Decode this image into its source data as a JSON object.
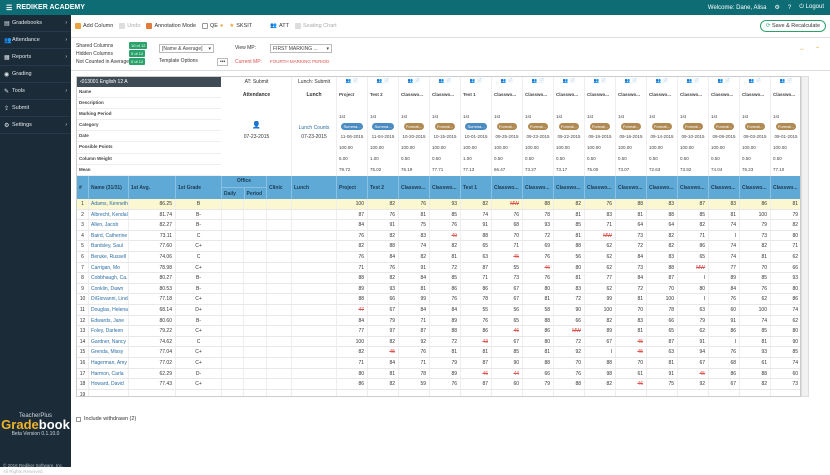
{
  "topbar": {
    "brand": "REDIKER ACADEMY",
    "welcome": "Welcome: Dane, Alisa",
    "logout": "Logout"
  },
  "sidebar": [
    {
      "icon": "book-icon",
      "label": "Gradebooks"
    },
    {
      "icon": "people-icon",
      "label": "Attendance"
    },
    {
      "icon": "report-icon",
      "label": "Reports"
    },
    {
      "icon": "grading-icon",
      "label": "Grading"
    },
    {
      "icon": "tools-icon",
      "label": "Tools"
    },
    {
      "icon": "submit-icon",
      "label": "Submit"
    },
    {
      "icon": "gear-icon",
      "label": "Settings"
    }
  ],
  "logo": {
    "teacherplus": "TeacherPlus",
    "grade": "Grade",
    "book": "book",
    "version": "Beta Version 0.1.10.0",
    "copyright": "© 2016 Rediker Software, Inc.",
    "rights": "All Rights Reserved."
  },
  "toolbar": {
    "add_column": "Add Column",
    "undo": "Undo",
    "annotation": "Annotation Mode",
    "qe": "QE",
    "sksit": "SKSIT",
    "att": "ATT",
    "seating": "Seating Chart",
    "save": "Save & Recalculate"
  },
  "options": {
    "shared": "Shared Columns",
    "hidden": "Hidden Columns",
    "not_counted": "Not Counted in Average",
    "shared_tag": "10 of 12",
    "hidden_tag": "0 of 12",
    "notcounted_tag": "0 of 12",
    "name_average": "[Name & Average]",
    "template": "Template Options",
    "view_mp": "View MP:",
    "mp_value": "FIRST MARKING ...",
    "current_mp": "Current MP:",
    "current_mp_value": "FOURTH MARKING PERIOD"
  },
  "grid_info": {
    "course": "013001 English 12 A",
    "labels": [
      "Name",
      "Description",
      "Marking Period",
      "Category",
      "Date",
      "Possible Points",
      "Column Weight",
      "Mean"
    ]
  },
  "special_cols": {
    "attendance": {
      "tag": "AT: Submit",
      "title": "Attendance",
      "date": "07-23-2015"
    },
    "lunch": {
      "tag": "Lunch: Submit",
      "title": "Lunch",
      "link": "Lunch Counts",
      "date": "07-23-2015"
    }
  },
  "assign_cols": [
    {
      "name": "Project",
      "mp": "1st",
      "cat": "Summa...",
      "date": "11-06-2015",
      "pts": "100.00",
      "wt": "5.00",
      "mean": "79.72",
      "catColor": "#4a8bc2"
    },
    {
      "name": "Test 2",
      "mp": "1st",
      "cat": "Summa...",
      "date": "11-04-2015",
      "pts": "100.00",
      "wt": "1.00",
      "mean": "75.02",
      "catColor": "#4a8bc2"
    },
    {
      "name": "Classwo...",
      "mp": "1st",
      "cat": "Format...",
      "date": "10-20-2015",
      "pts": "100.00",
      "wt": "0.50",
      "mean": "76.19",
      "catColor": "#b08a52"
    },
    {
      "name": "Classwo...",
      "mp": "1st",
      "cat": "Format...",
      "date": "10-15-2015",
      "pts": "100.00",
      "wt": "0.50",
      "mean": "77.71",
      "catColor": "#b08a52"
    },
    {
      "name": "Test 1",
      "mp": "1st",
      "cat": "Summa...",
      "date": "10-01-2015",
      "pts": "100.00",
      "wt": "1.00",
      "mean": "77.13",
      "catColor": "#4a8bc2"
    },
    {
      "name": "Classwo...",
      "mp": "1st",
      "cat": "Format...",
      "date": "09-25-2015",
      "pts": "100.00",
      "wt": "0.50",
      "mean": "66.47",
      "catColor": "#b08a52"
    },
    {
      "name": "Classwo...",
      "mp": "1st",
      "cat": "Format...",
      "date": "09-23-2015",
      "pts": "100.00",
      "wt": "0.50",
      "mean": "73.27",
      "catColor": "#b08a52"
    },
    {
      "name": "Classwo...",
      "mp": "1st",
      "cat": "Format...",
      "date": "09-22-2015",
      "pts": "100.00",
      "wt": "0.50",
      "mean": "73.17",
      "catColor": "#b08a52"
    },
    {
      "name": "Classwo...",
      "mp": "1st",
      "cat": "Format...",
      "date": "09-19-2015",
      "pts": "100.00",
      "wt": "0.50",
      "mean": "75.00",
      "catColor": "#b08a52"
    },
    {
      "name": "Classwo...",
      "mp": "1st",
      "cat": "Format...",
      "date": "09-16-2015",
      "pts": "100.00",
      "wt": "0.50",
      "mean": "73.07",
      "catColor": "#b08a52"
    },
    {
      "name": "Classwo...",
      "mp": "1st",
      "cat": "Format...",
      "date": "09-14-2015",
      "pts": "100.00",
      "wt": "0.50",
      "mean": "72.63",
      "catColor": "#b08a52"
    },
    {
      "name": "Classwo...",
      "mp": "1st",
      "cat": "Format...",
      "date": "09-10-2015",
      "pts": "100.00",
      "wt": "0.50",
      "mean": "73.92",
      "catColor": "#b08a52"
    },
    {
      "name": "Classwo...",
      "mp": "1st",
      "cat": "Format...",
      "date": "09-09-2015",
      "pts": "100.00",
      "wt": "0.50",
      "mean": "74.04",
      "catColor": "#b08a52"
    },
    {
      "name": "Classwo...",
      "mp": "1st",
      "cat": "Format...",
      "date": "09-03-2015",
      "pts": "100.00",
      "wt": "0.50",
      "mean": "76.23",
      "catColor": "#b08a52"
    },
    {
      "name": "Classwo...",
      "mp": "1st",
      "cat": "Format...",
      "date": "09-01-2015",
      "pts": "100.00",
      "wt": "0.50",
      "mean": "77.10",
      "catColor": "#b08a52"
    }
  ],
  "headers": {
    "num": "#",
    "name": "Name (31/31)",
    "avg": "1st Avg.",
    "grade": "1st Grade",
    "office": "Office",
    "daily": "Daily",
    "period": "Period",
    "clinic": "Clinic",
    "lunch": "Lunch"
  },
  "students": [
    {
      "n": "1",
      "name": "Adams, Kenneth",
      "avg": "86.25",
      "g": "B",
      "s": [
        "100",
        "82",
        "76",
        "93",
        "82",
        "MW",
        "88",
        "82",
        "76",
        "88",
        "83",
        "87",
        "83",
        "86",
        "81"
      ]
    },
    {
      "n": "2",
      "name": "Albrecht, Kendall",
      "avg": "81.74",
      "g": "B-",
      "s": [
        "87",
        "76",
        "81",
        "85",
        "74",
        "76",
        "78",
        "81",
        "83",
        "81",
        "88",
        "85",
        "81",
        "100",
        "79"
      ]
    },
    {
      "n": "3",
      "name": "Allen, Jacob",
      "avg": "82.27",
      "g": "B-",
      "s": [
        "84",
        "91",
        "75",
        "76",
        "91",
        "68",
        "93",
        "85",
        "71",
        "64",
        "64",
        "82",
        "74",
        "79",
        "82"
      ]
    },
    {
      "n": "4",
      "name": "Baird, Catherine",
      "avg": "73.11",
      "g": "C",
      "s": [
        "76",
        "82",
        "83",
        "49",
        "88",
        "70",
        "72",
        "81",
        "MW",
        "73",
        "82",
        "71",
        "I",
        "73",
        "80"
      ]
    },
    {
      "n": "5",
      "name": "Bardsley, Saul",
      "avg": "77.60",
      "g": "C+",
      "s": [
        "82",
        "88",
        "74",
        "82",
        "65",
        "71",
        "69",
        "88",
        "62",
        "72",
        "82",
        "86",
        "74",
        "82",
        "71"
      ]
    },
    {
      "n": "6",
      "name": "Beruke, Russell",
      "avg": "74.06",
      "g": "C",
      "s": [
        "76",
        "84",
        "82",
        "81",
        "63",
        "45",
        "76",
        "56",
        "62",
        "84",
        "83",
        "65",
        "74",
        "81",
        "62"
      ]
    },
    {
      "n": "7",
      "name": "Carrigan, Mo",
      "avg": "78.98",
      "g": "C+",
      "s": [
        "71",
        "76",
        "91",
        "72",
        "87",
        "55",
        "46",
        "80",
        "62",
        "73",
        "88",
        "MW",
        "77",
        "70",
        "66"
      ]
    },
    {
      "n": "8",
      "name": "Cobbhaugh, Ca...",
      "avg": "80.27",
      "g": "B-",
      "s": [
        "88",
        "82",
        "84",
        "85",
        "71",
        "73",
        "76",
        "81",
        "77",
        "84",
        "87",
        "I",
        "89",
        "85",
        "93"
      ]
    },
    {
      "n": "9",
      "name": "Conklin, Dawn",
      "avg": "80.53",
      "g": "B-",
      "s": [
        "89",
        "93",
        "81",
        "86",
        "86",
        "67",
        "80",
        "83",
        "62",
        "72",
        "70",
        "80",
        "84",
        "76",
        "80"
      ]
    },
    {
      "n": "10",
      "name": "DiGiovanni, Linda",
      "avg": "77.18",
      "g": "C+",
      "s": [
        "88",
        "66",
        "99",
        "76",
        "78",
        "67",
        "81",
        "72",
        "99",
        "81",
        "100",
        "I",
        "76",
        "62",
        "86"
      ]
    },
    {
      "n": "11",
      "name": "Douglas, Helena",
      "avg": "68.14",
      "g": "D+",
      "s": [
        "47",
        "67",
        "84",
        "84",
        "55",
        "56",
        "58",
        "90",
        "100",
        "70",
        "78",
        "63",
        "60",
        "100",
        "74"
      ]
    },
    {
      "n": "12",
      "name": "Edwards, Jane",
      "avg": "80.60",
      "g": "B-",
      "s": [
        "84",
        "79",
        "71",
        "89",
        "76",
        "65",
        "88",
        "66",
        "82",
        "83",
        "66",
        "79",
        "91",
        "74",
        "62"
      ]
    },
    {
      "n": "13",
      "name": "Foley, Darleen",
      "avg": "79.22",
      "g": "C+",
      "s": [
        "77",
        "97",
        "87",
        "88",
        "86",
        "46",
        "86",
        "MW",
        "89",
        "81",
        "65",
        "62",
        "86",
        "85",
        "80"
      ]
    },
    {
      "n": "14",
      "name": "Gardner, Nancy",
      "avg": "74.62",
      "g": "C",
      "s": [
        "100",
        "82",
        "92",
        "72",
        "43",
        "67",
        "80",
        "72",
        "67",
        "45",
        "87",
        "91",
        "I",
        "81",
        "90"
      ]
    },
    {
      "n": "15",
      "name": "Grenda, Missy",
      "avg": "77.04",
      "g": "C+",
      "s": [
        "82",
        "45",
        "76",
        "81",
        "81",
        "85",
        "81",
        "92",
        "I",
        "45",
        "63",
        "94",
        "76",
        "93",
        "85"
      ]
    },
    {
      "n": "16",
      "name": "Hagerman, Amy",
      "avg": "77.02",
      "g": "C+",
      "s": [
        "71",
        "84",
        "71",
        "79",
        "87",
        "90",
        "88",
        "70",
        "88",
        "70",
        "81",
        "67",
        "68",
        "61",
        "74"
      ]
    },
    {
      "n": "17",
      "name": "Harmon, Carla",
      "avg": "62.29",
      "g": "D-",
      "s": [
        "80",
        "81",
        "78",
        "89",
        "46",
        "44",
        "66",
        "76",
        "98",
        "61",
        "91",
        "45",
        "86",
        "88",
        "60"
      ]
    },
    {
      "n": "18",
      "name": "Howard, David",
      "avg": "77.43",
      "g": "C+",
      "s": [
        "86",
        "82",
        "59",
        "76",
        "87",
        "60",
        "79",
        "88",
        "82",
        "46",
        "75",
        "92",
        "67",
        "82",
        "73"
      ]
    },
    {
      "n": "19",
      "name": "",
      "avg": "",
      "g": "",
      "s": [
        "",
        "",
        "",
        "",
        "",
        "",
        "",
        "",
        "",
        "",
        "",
        "",
        "",
        "",
        ""
      ]
    }
  ],
  "footer": {
    "include_withdrawn": "Include withdrawn (2)"
  }
}
